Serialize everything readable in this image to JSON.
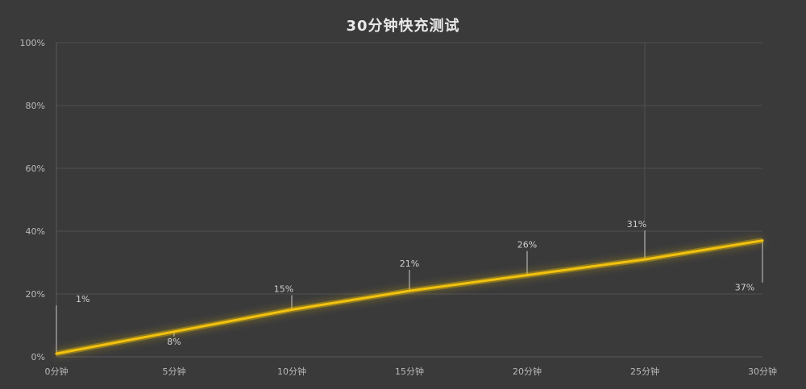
{
  "chart_data": {
    "type": "line",
    "title": "30分钟快充测试",
    "xlabel": "",
    "ylabel": "",
    "categories": [
      "0分钟",
      "5分钟",
      "10分钟",
      "15分钟",
      "20分钟",
      "25分钟",
      "30分钟"
    ],
    "series": [
      {
        "values": [
          1,
          8,
          15,
          21,
          26,
          31,
          37
        ],
        "data_labels": [
          "1%",
          "8%",
          "15%",
          "21%",
          "26%",
          "31%",
          "37%"
        ],
        "color": "#f2c20f"
      }
    ],
    "y_ticks": [
      "0%",
      "20%",
      "40%",
      "60%",
      "80%",
      "100%"
    ],
    "ylim": [
      0,
      100
    ],
    "grid": true,
    "legend": "none"
  },
  "colors": {
    "background": "#3a3a3b",
    "line": "#f2c20f",
    "grid": "#505052"
  }
}
